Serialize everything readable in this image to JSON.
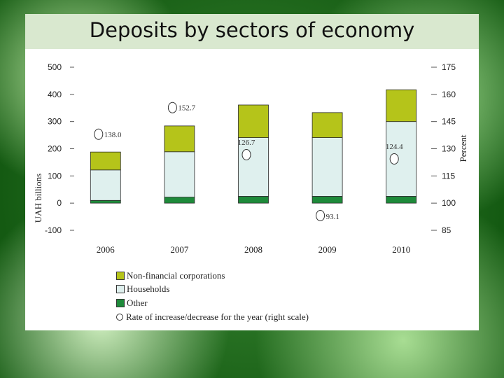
{
  "slide": {
    "title": "Deposits by sectors of economy"
  },
  "chart_data": {
    "type": "bar",
    "stacked": true,
    "categories": [
      "2006",
      "2007",
      "2008",
      "2009",
      "2010"
    ],
    "series": [
      {
        "name": "Other",
        "color": "#1e8a3a",
        "values": [
          10,
          22,
          25,
          25,
          25
        ]
      },
      {
        "name": "Households",
        "color": "#dff0ee",
        "values": [
          112,
          167,
          216,
          216,
          275
        ]
      },
      {
        "name": "Non-financial corporations",
        "color": "#b5c41a",
        "values": [
          66,
          95,
          120,
          92,
          117
        ]
      }
    ],
    "line_series": {
      "name": "Rate of increase/decrease for the year (right scale)",
      "marker": "circle",
      "values": [
        138.0,
        152.7,
        126.7,
        93.1,
        124.4
      ],
      "labels": [
        "138.0",
        "152.7",
        "126.7",
        "93.1",
        "124.4"
      ]
    },
    "left_axis": {
      "label": "UAH billions",
      "ylim": [
        -100,
        500
      ],
      "ticks": [
        500,
        400,
        300,
        200,
        100,
        0,
        -100
      ],
      "tick_labels": [
        "500",
        "400",
        "300",
        "200",
        "100",
        "0",
        "-100"
      ]
    },
    "right_axis": {
      "label": "Percent",
      "ylim": [
        85,
        175
      ],
      "ticks": [
        175,
        160,
        145,
        130,
        115,
        100,
        85
      ],
      "tick_labels": [
        "175",
        "160",
        "145",
        "130",
        "115",
        "100",
        "85"
      ]
    },
    "grid": false,
    "legend_position": "bottom-left",
    "legend": [
      {
        "label": "Non-financial corporations",
        "marker": "square",
        "color": "#b5c41a"
      },
      {
        "label": "Households",
        "marker": "square",
        "color": "#dff0ee"
      },
      {
        "label": "Other",
        "marker": "square",
        "color": "#1e8a3a"
      },
      {
        "label": "Rate of increase/decrease for the year (right scale)",
        "marker": "circle",
        "color": "#ffffff"
      }
    ]
  }
}
